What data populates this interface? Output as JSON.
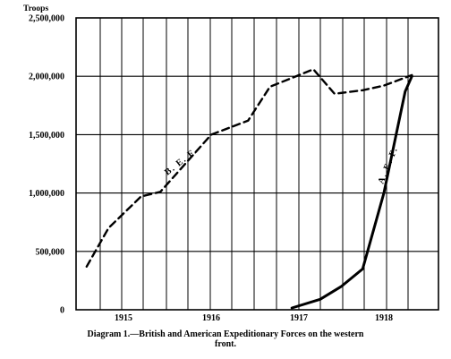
{
  "chart_data": {
    "type": "line",
    "title": "",
    "y_unit_label": "Troops",
    "xlabel": "",
    "ylabel": "",
    "x_tick_labels": [
      "1915",
      "1916",
      "1917",
      "1918"
    ],
    "y_tick_labels": [
      "0",
      "500,000",
      "1,000,000",
      "1,500,000",
      "2,000,000",
      "2,500,000"
    ],
    "ylim": [
      0,
      2500000
    ],
    "xlim": [
      1914.5,
      1918.7
    ],
    "grid": true,
    "series": [
      {
        "name": "B. E. F.",
        "style": "dashed",
        "x": [
          1914.58,
          1914.83,
          1915.2,
          1915.42,
          1916.0,
          1916.42,
          1916.67,
          1917.17,
          1917.42,
          1917.75,
          1918.0,
          1918.33
        ],
        "y": [
          370000,
          700000,
          970000,
          1010000,
          1500000,
          1620000,
          1910000,
          2060000,
          1850000,
          1880000,
          1920000,
          2010000
        ]
      },
      {
        "name": "A. E. F.",
        "style": "solid",
        "x": [
          1916.92,
          1917.25,
          1917.5,
          1917.75,
          1918.0,
          1918.25,
          1918.33
        ],
        "y": [
          15000,
          90000,
          200000,
          350000,
          1000000,
          1870000,
          2000000
        ]
      }
    ]
  },
  "caption": {
    "line1": "Diagram 1.—British and American Expeditionary Forces on the western",
    "line2": "front."
  }
}
